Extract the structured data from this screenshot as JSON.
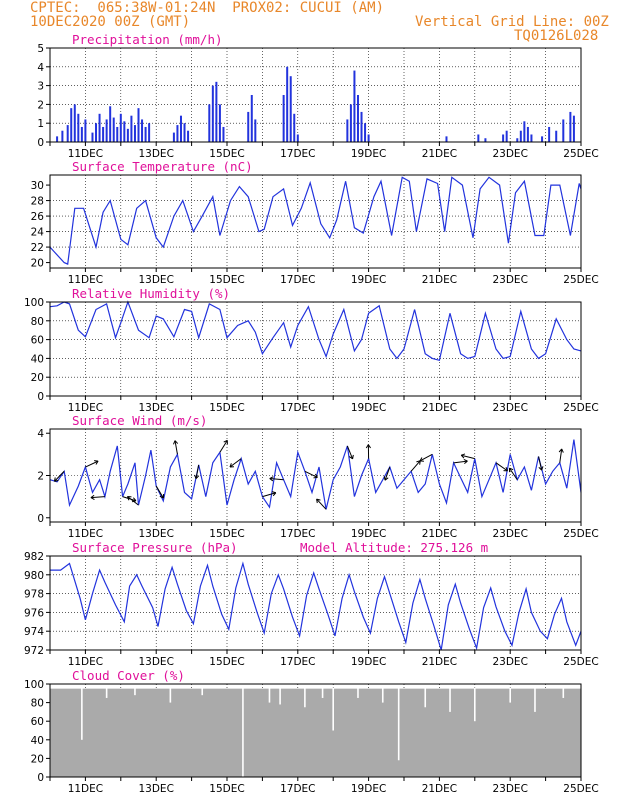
{
  "header": {
    "line1_left": "CPTEC:  065:38W-01:24N  PROX02: CUCUI (AM)",
    "line2_left": "10DEC2020 00Z (GMT)",
    "line2_right": "Vertical Grid Line: 00Z",
    "line3_right": "TQ0126L028"
  },
  "colors": {
    "series": "#2233dd",
    "cloud": "#aaaaaa",
    "title": "#e0109a",
    "header": "#e8872a"
  },
  "chart_data": [
    {
      "type": "bar",
      "title": "Precipitation (mm/h)",
      "ylim": [
        0,
        5
      ],
      "yticks": [
        0,
        1,
        2,
        3,
        4,
        5
      ],
      "xlabels": [
        "11DEC",
        "13DEC",
        "15DEC",
        "17DEC",
        "19DEC",
        "21DEC",
        "23DEC",
        "25DEC"
      ],
      "x": [
        10.2,
        10.35,
        10.5,
        10.6,
        10.7,
        10.8,
        10.9,
        11.0,
        11.2,
        11.3,
        11.4,
        11.5,
        11.6,
        11.7,
        11.8,
        11.9,
        12.0,
        12.1,
        12.2,
        12.3,
        12.4,
        12.5,
        12.6,
        12.7,
        12.8,
        13.5,
        13.6,
        13.7,
        13.8,
        13.9,
        14.5,
        14.6,
        14.7,
        14.8,
        14.9,
        15.6,
        15.7,
        15.8,
        16.6,
        16.7,
        16.8,
        16.9,
        17.0,
        18.4,
        18.5,
        18.6,
        18.7,
        18.8,
        18.9,
        19.0,
        21.2,
        22.1,
        22.3,
        22.8,
        22.9,
        23.2,
        23.3,
        23.4,
        23.5,
        23.6,
        23.9,
        24.1,
        24.3,
        24.5,
        24.7,
        24.8
      ],
      "values": [
        0.3,
        0.6,
        0.9,
        1.8,
        2.0,
        1.5,
        0.8,
        1.2,
        0.5,
        1.0,
        1.5,
        0.8,
        1.2,
        1.9,
        1.3,
        0.8,
        1.5,
        1.1,
        0.7,
        1.4,
        0.9,
        1.8,
        1.2,
        0.8,
        1.0,
        0.5,
        0.9,
        1.4,
        1.0,
        0.6,
        2.0,
        3.0,
        3.2,
        2.0,
        0.8,
        1.6,
        2.5,
        1.2,
        2.5,
        4.0,
        3.5,
        1.5,
        0.4,
        1.2,
        2.0,
        3.8,
        2.5,
        1.6,
        1.0,
        0.4,
        0.3,
        0.4,
        0.2,
        0.4,
        0.6,
        0.2,
        0.6,
        1.1,
        0.8,
        0.4,
        0.3,
        0.8,
        0.6,
        1.2,
        1.6,
        1.4
      ]
    },
    {
      "type": "line",
      "title": "Surface Temperature (nC)",
      "ylim": [
        19.3,
        31.3
      ],
      "yticks": [
        20,
        22,
        24,
        26,
        28,
        30
      ],
      "xlabels": [
        "11DEC",
        "13DEC",
        "15DEC",
        "17DEC",
        "19DEC",
        "21DEC",
        "23DEC",
        "25DEC"
      ],
      "x": [
        10.0,
        10.1,
        10.4,
        10.5,
        10.7,
        10.95,
        11.3,
        11.5,
        11.7,
        12.0,
        12.2,
        12.45,
        12.7,
        13.0,
        13.2,
        13.5,
        13.75,
        14.05,
        14.3,
        14.6,
        14.8,
        15.1,
        15.35,
        15.6,
        15.9,
        16.05,
        16.3,
        16.6,
        16.85,
        17.1,
        17.35,
        17.65,
        17.9,
        18.1,
        18.35,
        18.6,
        18.85,
        19.15,
        19.35,
        19.65,
        19.95,
        20.15,
        20.35,
        20.65,
        20.95,
        21.15,
        21.35,
        21.65,
        21.95,
        22.15,
        22.4,
        22.7,
        22.95,
        23.15,
        23.4,
        23.7,
        23.95,
        24.15,
        24.4,
        24.7,
        24.95,
        25.0
      ],
      "values": [
        22.0,
        21.5,
        20.0,
        19.8,
        27.0,
        27.0,
        22.0,
        26.5,
        28.0,
        23.0,
        22.3,
        27.0,
        28.0,
        23.2,
        22.0,
        26.0,
        28.0,
        24.0,
        26.0,
        28.5,
        23.5,
        28.0,
        29.8,
        28.5,
        24.0,
        24.3,
        28.5,
        29.5,
        24.8,
        27.0,
        30.3,
        25.0,
        23.2,
        25.5,
        30.5,
        24.5,
        23.8,
        28.5,
        30.5,
        23.5,
        31.0,
        30.5,
        24.0,
        30.8,
        30.2,
        24.0,
        31.0,
        30.0,
        23.2,
        29.5,
        31.0,
        30.0,
        22.5,
        29.0,
        30.5,
        23.5,
        23.5,
        30.0,
        30.0,
        23.5,
        30.2,
        29.5
      ]
    },
    {
      "type": "line",
      "title": "Relative Humidity (%)",
      "ylim": [
        0,
        100
      ],
      "yticks": [
        0,
        20,
        40,
        60,
        80,
        100
      ],
      "xlabels": [
        "11DEC",
        "13DEC",
        "15DEC",
        "17DEC",
        "19DEC",
        "21DEC",
        "23DEC",
        "25DEC"
      ],
      "x": [
        10.0,
        10.2,
        10.4,
        10.55,
        10.8,
        11.0,
        11.3,
        11.6,
        11.85,
        12.0,
        12.2,
        12.5,
        12.8,
        13.0,
        13.2,
        13.5,
        13.8,
        14.0,
        14.2,
        14.5,
        14.8,
        15.0,
        15.3,
        15.6,
        15.8,
        16.0,
        16.3,
        16.6,
        16.8,
        17.0,
        17.3,
        17.6,
        17.8,
        18.0,
        18.3,
        18.6,
        18.8,
        19.0,
        19.3,
        19.6,
        19.8,
        20.0,
        20.3,
        20.6,
        20.8,
        21.0,
        21.3,
        21.6,
        21.8,
        22.0,
        22.3,
        22.6,
        22.8,
        23.0,
        23.3,
        23.6,
        23.8,
        24.0,
        24.3,
        24.6,
        24.8,
        25.0
      ],
      "values": [
        95,
        96,
        100,
        98,
        70,
        63,
        92,
        98,
        62,
        78,
        100,
        70,
        62,
        85,
        82,
        63,
        92,
        90,
        62,
        98,
        92,
        62,
        75,
        80,
        68,
        45,
        62,
        78,
        52,
        75,
        95,
        60,
        42,
        66,
        92,
        48,
        60,
        88,
        96,
        50,
        40,
        50,
        92,
        45,
        40,
        38,
        88,
        45,
        40,
        42,
        88,
        50,
        40,
        42,
        90,
        50,
        40,
        45,
        82,
        60,
        50,
        48
      ]
    },
    {
      "type": "line",
      "title": "Surface Wind (m/s)",
      "ylim": [
        -0.2,
        4.2
      ],
      "yticks": [
        0,
        2,
        4
      ],
      "xlabels": [
        "11DEC",
        "13DEC",
        "15DEC",
        "17DEC",
        "19DEC",
        "21DEC",
        "23DEC",
        "25DEC"
      ],
      "x": [
        10.0,
        10.2,
        10.4,
        10.55,
        10.8,
        11.0,
        11.2,
        11.4,
        11.55,
        11.7,
        11.9,
        12.05,
        12.2,
        12.4,
        12.5,
        12.7,
        12.85,
        13.0,
        13.2,
        13.4,
        13.6,
        13.8,
        14.0,
        14.2,
        14.4,
        14.6,
        14.8,
        15.0,
        15.2,
        15.4,
        15.6,
        15.8,
        16.0,
        16.2,
        16.4,
        16.6,
        16.8,
        17.0,
        17.2,
        17.4,
        17.6,
        17.8,
        18.0,
        18.2,
        18.4,
        18.6,
        18.8,
        19.0,
        19.2,
        19.4,
        19.6,
        19.8,
        20.0,
        20.2,
        20.4,
        20.6,
        20.8,
        21.0,
        21.2,
        21.4,
        21.6,
        21.8,
        22.0,
        22.2,
        22.4,
        22.6,
        22.8,
        23.0,
        23.2,
        23.4,
        23.6,
        23.8,
        24.0,
        24.2,
        24.4,
        24.6,
        24.8,
        25.0
      ],
      "values": [
        1.8,
        1.7,
        2.2,
        0.6,
        1.5,
        2.4,
        1.2,
        1.8,
        1.0,
        2.2,
        3.4,
        1.0,
        1.6,
        2.6,
        0.6,
        2.0,
        3.2,
        1.5,
        0.8,
        2.4,
        3.0,
        1.2,
        0.9,
        2.5,
        1.0,
        2.6,
        3.1,
        0.6,
        1.8,
        2.8,
        1.6,
        2.2,
        1.0,
        0.5,
        2.6,
        1.8,
        1.0,
        3.1,
        2.2,
        1.2,
        2.4,
        0.4,
        1.8,
        2.4,
        3.4,
        1.0,
        2.0,
        2.8,
        1.2,
        1.8,
        2.4,
        1.4,
        1.8,
        2.2,
        1.2,
        1.6,
        3.0,
        1.6,
        0.7,
        2.6,
        1.9,
        1.2,
        2.8,
        1.0,
        1.8,
        2.6,
        1.2,
        3.0,
        1.8,
        2.4,
        1.3,
        2.9,
        1.6,
        2.2,
        2.6,
        1.4,
        3.7,
        1.2
      ]
    },
    {
      "type": "line",
      "title": "Surface Pressure (hPa)",
      "annotation": "Model Altitude: 275.126 m",
      "ylim": [
        972,
        982
      ],
      "yticks": [
        972,
        974,
        976,
        978,
        980,
        982
      ],
      "xlabels": [
        "11DEC",
        "13DEC",
        "15DEC",
        "17DEC",
        "19DEC",
        "21DEC",
        "23DEC",
        "25DEC"
      ],
      "x": [
        10.0,
        10.3,
        10.55,
        10.85,
        11.0,
        11.2,
        11.4,
        11.55,
        11.85,
        12.1,
        12.25,
        12.45,
        12.6,
        12.9,
        13.05,
        13.25,
        13.45,
        13.6,
        13.85,
        14.05,
        14.25,
        14.45,
        14.6,
        14.85,
        15.05,
        15.25,
        15.45,
        15.6,
        15.85,
        16.05,
        16.25,
        16.45,
        16.6,
        16.85,
        17.05,
        17.25,
        17.45,
        17.6,
        17.85,
        18.05,
        18.25,
        18.45,
        18.6,
        18.85,
        19.05,
        19.25,
        19.45,
        19.6,
        19.85,
        20.05,
        20.25,
        20.45,
        20.6,
        20.85,
        21.05,
        21.25,
        21.45,
        21.6,
        21.85,
        22.05,
        22.25,
        22.45,
        22.6,
        22.85,
        23.05,
        23.25,
        23.45,
        23.6,
        23.85,
        24.05,
        24.25,
        24.45,
        24.6,
        24.85,
        25.0
      ],
      "values": [
        980.5,
        980.5,
        981.2,
        977.5,
        975.2,
        978.0,
        980.5,
        979.2,
        976.8,
        975.0,
        978.8,
        980.0,
        978.8,
        976.5,
        974.5,
        978.5,
        980.8,
        979.0,
        976.2,
        974.8,
        978.8,
        981.0,
        978.8,
        975.8,
        974.2,
        978.6,
        981.2,
        979.0,
        976.0,
        973.8,
        978.0,
        980.0,
        978.5,
        975.5,
        973.5,
        977.8,
        980.2,
        978.5,
        975.8,
        973.5,
        977.5,
        980.0,
        978.2,
        975.5,
        973.8,
        977.5,
        979.8,
        978.0,
        975.0,
        972.8,
        977.0,
        979.5,
        977.5,
        974.5,
        972.0,
        976.8,
        979.0,
        977.0,
        974.2,
        972.2,
        976.5,
        978.6,
        976.6,
        974.0,
        972.5,
        976.0,
        978.5,
        976.0,
        974.0,
        973.2,
        975.8,
        977.5,
        975.0,
        972.5,
        974.0
      ]
    },
    {
      "type": "bar",
      "title": "Cloud Cover (%)",
      "ylim": [
        0,
        100
      ],
      "yticks": [
        0,
        20,
        40,
        60,
        80,
        100
      ],
      "xlabels": [
        "11DEC",
        "13DEC",
        "15DEC",
        "17DEC",
        "19DEC",
        "21DEC",
        "23DEC",
        "25DEC"
      ],
      "x_range": [
        10.0,
        25.0
      ],
      "typical_value": 95,
      "dips_x": [
        10.9,
        11.6,
        12.4,
        13.4,
        14.3,
        15.45,
        16.2,
        16.5,
        17.2,
        17.7,
        18.0,
        18.7,
        19.4,
        19.85,
        20.6,
        21.3,
        22.0,
        23.0,
        23.7,
        24.5
      ],
      "dips_values": [
        40,
        85,
        88,
        80,
        88,
        0,
        80,
        78,
        75,
        85,
        50,
        85,
        80,
        18,
        75,
        70,
        60,
        80,
        70,
        85
      ]
    }
  ]
}
